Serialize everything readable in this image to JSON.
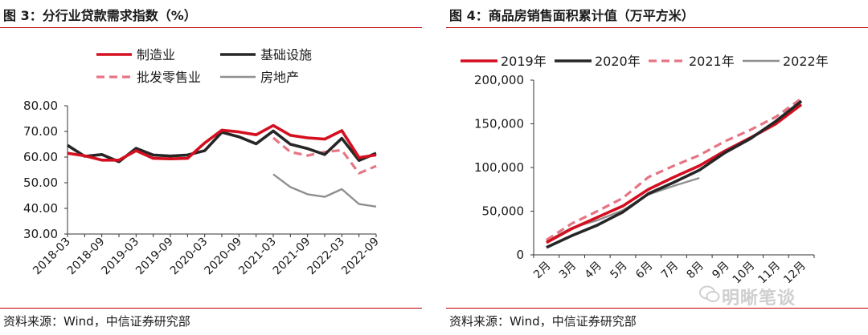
{
  "chart_data": [
    {
      "type": "line",
      "title": "图 3：分行业贷款需求指数（%）",
      "source": "资料来源：Wind，中信证券研究部",
      "ylim": [
        30,
        80
      ],
      "yticks": [
        "80.00",
        "70.00",
        "60.00",
        "50.00",
        "40.00",
        "30.00"
      ],
      "ytick_values": [
        80,
        70,
        60,
        50,
        40,
        30
      ],
      "xlabels": [
        "2018-03",
        "2018-09",
        "2019-03",
        "2019-09",
        "2020-03",
        "2020-09",
        "2021-03",
        "2021-09",
        "2022-03",
        "2022-09"
      ],
      "x": [
        "2018-03",
        "2018-06",
        "2018-09",
        "2018-12",
        "2019-03",
        "2019-06",
        "2019-09",
        "2019-12",
        "2020-03",
        "2020-06",
        "2020-09",
        "2020-12",
        "2021-03",
        "2021-06",
        "2021-09",
        "2021-12",
        "2022-03",
        "2022-06",
        "2022-09"
      ],
      "series": [
        {
          "name": "制造业",
          "color": "#d40f1f",
          "dash": "",
          "width": 3.6,
          "values": [
            61.5,
            60.5,
            58.8,
            58.8,
            62.5,
            59.5,
            59.3,
            59.5,
            65.5,
            70.5,
            69.8,
            68.7,
            72.3,
            68.5,
            67.5,
            67.0,
            70.3,
            59.8,
            60.8
          ]
        },
        {
          "name": "基础设施",
          "color": "#262626",
          "dash": "",
          "width": 3.6,
          "values": [
            64.6,
            60.3,
            61.0,
            58.2,
            63.4,
            60.8,
            60.4,
            60.8,
            62.5,
            69.7,
            67.9,
            65.2,
            70.2,
            65.0,
            63.3,
            61.0,
            67.3,
            58.7,
            61.5
          ]
        },
        {
          "name": "批发零售业",
          "color": "#e67584",
          "dash": "10,6",
          "width": 3.2,
          "values": [
            null,
            null,
            null,
            null,
            null,
            null,
            null,
            null,
            null,
            null,
            null,
            null,
            67.5,
            62.0,
            60.6,
            62.0,
            62.7,
            53.7,
            56.5
          ]
        },
        {
          "name": "房地产",
          "color": "#8f8f8f",
          "dash": "",
          "width": 2.4,
          "values": [
            null,
            null,
            null,
            null,
            null,
            null,
            null,
            null,
            null,
            null,
            null,
            null,
            53.3,
            48.3,
            45.5,
            44.5,
            47.5,
            41.7,
            40.7
          ]
        }
      ]
    },
    {
      "type": "line",
      "title": "图 4：商品房销售面积累计值（万平方米）",
      "source": "资料来源：Wind，中信证券研究部",
      "ylim": [
        0,
        200000
      ],
      "yticks": [
        "200,000",
        "150,000",
        "100,000",
        "50,000",
        "0"
      ],
      "ytick_values": [
        200000,
        150000,
        100000,
        50000,
        0
      ],
      "categories": [
        "2月",
        "3月",
        "4月",
        "5月",
        "6月",
        "7月",
        "8月",
        "9月",
        "10月",
        "11月",
        "12月"
      ],
      "series": [
        {
          "name": "2019年",
          "color": "#d40f1f",
          "dash": "",
          "width": 3.6,
          "values": [
            14000,
            30000,
            43000,
            56000,
            75000,
            89000,
            102000,
            119000,
            134000,
            150000,
            172000
          ]
        },
        {
          "name": "2020年",
          "color": "#262626",
          "dash": "",
          "width": 3.6,
          "values": [
            8500,
            22000,
            34000,
            49000,
            70000,
            83000,
            97000,
            117000,
            133000,
            153000,
            176000
          ]
        },
        {
          "name": "2021年",
          "color": "#e67584",
          "dash": "10,6",
          "width": 3.2,
          "values": [
            17000,
            36000,
            50000,
            65000,
            89000,
            102000,
            114000,
            130000,
            143000,
            158000,
            179000
          ]
        },
        {
          "name": "2022年",
          "color": "#8f8f8f",
          "dash": "",
          "width": 2.4,
          "values": [
            15500,
            31000,
            39500,
            51000,
            69000,
            79000,
            88000,
            null,
            null,
            null,
            null
          ]
        }
      ]
    }
  ],
  "watermark": {
    "text": "明晰笔谈",
    "icon": "wechat-icon"
  }
}
